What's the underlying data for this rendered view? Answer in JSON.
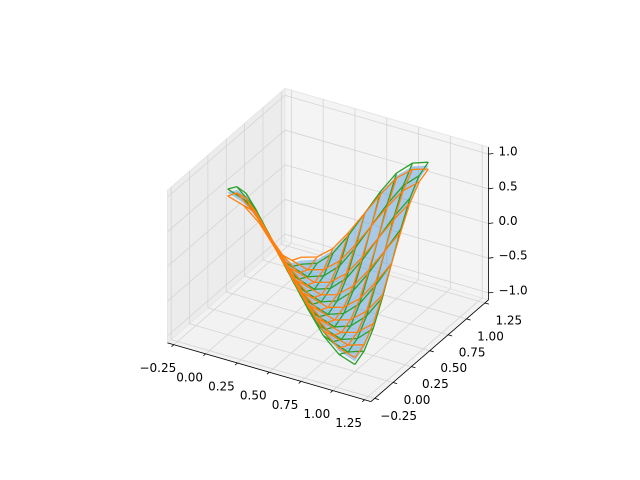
{
  "chart_data": {
    "type": "wireframe3d",
    "x": [
      0,
      0.125,
      0.25,
      0.375,
      0.5,
      0.625,
      0.75,
      0.875,
      1
    ],
    "y": [
      0,
      0.125,
      0.25,
      0.375,
      0.5,
      0.625,
      0.75,
      0.875,
      1
    ],
    "xlim": [
      -0.3,
      1.3
    ],
    "ylim": [
      -0.3,
      1.3
    ],
    "zlim": [
      -1.1,
      1.1
    ],
    "xticks": [
      {
        "value": -0.25,
        "label": "−0.25"
      },
      {
        "value": 0,
        "label": "0.00"
      },
      {
        "value": 0.25,
        "label": "0.25"
      },
      {
        "value": 0.5,
        "label": "0.50"
      },
      {
        "value": 0.75,
        "label": "0.75"
      },
      {
        "value": 1,
        "label": "1.00"
      },
      {
        "value": 1.25,
        "label": "1.25"
      }
    ],
    "yticks": [
      {
        "value": -0.25,
        "label": "−0.25"
      },
      {
        "value": 0,
        "label": "0.00"
      },
      {
        "value": 0.25,
        "label": "0.25"
      },
      {
        "value": 0.5,
        "label": "0.50"
      },
      {
        "value": 0.75,
        "label": "0.75"
      },
      {
        "value": 1,
        "label": "1.00"
      },
      {
        "value": 1.25,
        "label": "1.25"
      }
    ],
    "zticks": [
      {
        "value": -1,
        "label": "−1.0"
      },
      {
        "value": -0.5,
        "label": "−0.5"
      },
      {
        "value": 0,
        "label": "0.0"
      },
      {
        "value": 0.5,
        "label": "0.5"
      },
      {
        "value": 1,
        "label": "1.0"
      }
    ],
    "grid": true,
    "series": [
      {
        "kind": "surface",
        "color": "#6aa8dc",
        "values": [
          [
            0.95,
            0.87,
            0.67,
            0.36,
            0,
            -0.36,
            -0.67,
            -0.87,
            -0.95
          ],
          [
            0.87,
            0.67,
            0.36,
            0,
            -0.36,
            -0.67,
            -0.87,
            -0.95,
            -0.87
          ],
          [
            0.67,
            0.36,
            0,
            -0.36,
            -0.67,
            -0.87,
            -0.95,
            -0.87,
            -0.67
          ],
          [
            0.36,
            0,
            -0.36,
            -0.67,
            -0.87,
            -0.95,
            -0.87,
            -0.67,
            -0.36
          ],
          [
            0,
            -0.36,
            -0.67,
            -0.87,
            -0.95,
            -0.87,
            -0.67,
            -0.36,
            0
          ],
          [
            -0.36,
            -0.67,
            -0.87,
            -0.95,
            -0.87,
            -0.67,
            -0.36,
            0,
            0.36
          ],
          [
            -0.67,
            -0.87,
            -0.95,
            -0.87,
            -0.67,
            -0.36,
            0,
            0.36,
            0.67
          ],
          [
            -0.87,
            -0.95,
            -0.87,
            -0.67,
            -0.36,
            0,
            0.36,
            0.67,
            0.87
          ],
          [
            -0.95,
            -0.87,
            -0.67,
            -0.36,
            0,
            0.36,
            0.67,
            0.87,
            0.95
          ]
        ]
      },
      {
        "kind": "wireframe",
        "color": "#2ca02c",
        "values": [
          [
            1,
            0.92,
            0.71,
            0.38,
            0,
            -0.38,
            -0.71,
            -0.92,
            -1
          ],
          [
            0.92,
            0.71,
            0.38,
            0,
            -0.38,
            -0.71,
            -0.92,
            -1,
            -0.92
          ],
          [
            0.71,
            0.38,
            0,
            -0.38,
            -0.71,
            -0.92,
            -1,
            -0.92,
            -0.71
          ],
          [
            0.38,
            0,
            -0.38,
            -0.71,
            -0.92,
            -1,
            -0.92,
            -0.71,
            -0.38
          ],
          [
            0,
            -0.38,
            -0.71,
            -0.92,
            -1,
            -0.92,
            -0.71,
            -0.38,
            0
          ],
          [
            -0.38,
            -0.71,
            -0.92,
            -1,
            -0.92,
            -0.71,
            -0.38,
            0,
            0.38
          ],
          [
            -0.71,
            -0.92,
            -1,
            -0.92,
            -0.71,
            -0.38,
            0,
            0.38,
            0.71
          ],
          [
            -0.92,
            -1,
            -0.92,
            -0.71,
            -0.38,
            0,
            0.38,
            0.71,
            0.92
          ],
          [
            -1,
            -0.92,
            -0.71,
            -0.38,
            0,
            0.38,
            0.71,
            0.92,
            1
          ]
        ]
      },
      {
        "kind": "wireframe",
        "color": "#ff7f0e",
        "values": [
          [
            0.9,
            0.83,
            0.64,
            0.34,
            0,
            -0.34,
            -0.64,
            -0.83,
            -0.9
          ],
          [
            0.83,
            0.64,
            0.34,
            0,
            -0.34,
            -0.64,
            -0.83,
            -0.9,
            -0.83
          ],
          [
            0.64,
            0.34,
            0,
            -0.34,
            -0.64,
            -0.83,
            -0.9,
            -0.83,
            -0.64
          ],
          [
            0.34,
            0,
            -0.34,
            -0.64,
            -0.83,
            -0.9,
            -0.83,
            -0.64,
            -0.34
          ],
          [
            0,
            -0.34,
            -0.64,
            -0.83,
            -0.9,
            -0.83,
            -0.64,
            -0.34,
            0
          ],
          [
            -0.34,
            -0.64,
            -0.83,
            -0.9,
            -0.83,
            -0.64,
            -0.34,
            0,
            0.34
          ],
          [
            -0.64,
            -0.83,
            -0.9,
            -0.83,
            -0.64,
            -0.34,
            0,
            0.34,
            0.64
          ],
          [
            -0.83,
            -0.9,
            -0.83,
            -0.64,
            -0.34,
            0,
            0.34,
            0.64,
            0.83
          ],
          [
            -0.9,
            -0.83,
            -0.64,
            -0.34,
            0,
            0.34,
            0.64,
            0.83,
            0.9
          ]
        ]
      }
    ]
  }
}
